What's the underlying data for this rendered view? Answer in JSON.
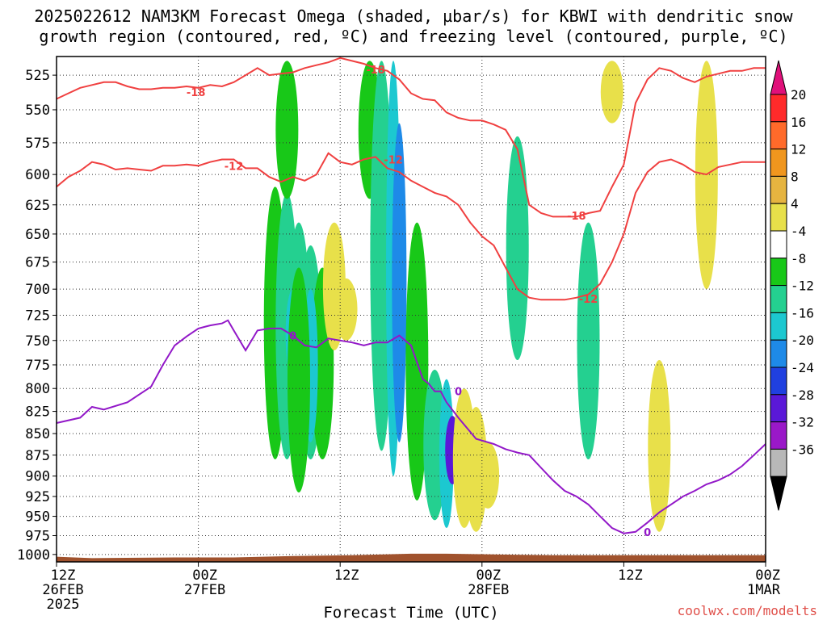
{
  "title_line1": "2025022612 NAM3KM Forecast Omega (shaded, µbar/s) for KBWI with dendritic snow",
  "title_line2": "growth region (contoured, red, ºC) and freezing level (contoured, purple, ºC)",
  "x_axis_title": "Forecast Time (UTC)",
  "credit": "coolwx.com/modelts",
  "chart_data": {
    "type": "heatmap",
    "title": "2025022612 NAM3KM Forecast Omega (shaded, µbar/s) for KBWI with dendritic snow growth region (contoured, red, ºC) and freezing level (contoured, purple, ºC)",
    "xlabel": "Forecast Time (UTC)",
    "ylabel": "",
    "x_ticks": [
      {
        "hour": 0,
        "line1": "12Z",
        "line2": "26FEB",
        "line3": "2025"
      },
      {
        "hour": 12,
        "line1": "00Z",
        "line2": "27FEB",
        "line3": ""
      },
      {
        "hour": 24,
        "line1": "12Z",
        "line2": "",
        "line3": ""
      },
      {
        "hour": 36,
        "line1": "00Z",
        "line2": "28FEB",
        "line3": ""
      },
      {
        "hour": 48,
        "line1": "12Z",
        "line2": "",
        "line3": ""
      },
      {
        "hour": 60,
        "line1": "00Z",
        "line2": "1MAR",
        "line3": ""
      }
    ],
    "xlim": [
      0,
      60
    ],
    "y_ticks": [
      525,
      550,
      575,
      600,
      625,
      650,
      675,
      700,
      725,
      750,
      775,
      800,
      825,
      850,
      875,
      900,
      925,
      950,
      975,
      1000
    ],
    "ylim": [
      512,
      1010
    ],
    "y_scale": "log-pressure",
    "grid": true,
    "colorbar": {
      "labels": [
        "20",
        "16",
        "12",
        "8",
        "4",
        "-4",
        "-8",
        "-12",
        "-16",
        "-20",
        "-24",
        "-28",
        "-32",
        "-36"
      ],
      "levels": [
        20,
        16,
        12,
        8,
        4,
        -4,
        -8,
        -12,
        -16,
        -20,
        -24,
        -28,
        -32,
        -36
      ],
      "colors": [
        "#ff2a2a",
        "#ff5a2a",
        "#f08a1a",
        "#e8b43a",
        "#e8e04a",
        "#ffffff",
        "#18c818",
        "#24d090",
        "#1cc8d0",
        "#1e8ae8",
        "#2040e0",
        "#5a18d8",
        "#9a18c8",
        "#b8b8b8"
      ],
      "top_triangle_color": "#e0107a",
      "bottom_triangle_color": "#000000"
    },
    "contours": [
      {
        "name": "freezing-level",
        "value": "0",
        "color": "#9218c8",
        "x": [
          0,
          2,
          3,
          4,
          6,
          8,
          9,
          10,
          11,
          12,
          13,
          14,
          14.5,
          15,
          16,
          17,
          18,
          19,
          20,
          21,
          22,
          23,
          24,
          25,
          26,
          27,
          28,
          29,
          30,
          31,
          31.5,
          32,
          32.5,
          33,
          34,
          35,
          35.5,
          36,
          37,
          38,
          39,
          40,
          41,
          42,
          43,
          44,
          45,
          46,
          47,
          48,
          49,
          50,
          51,
          52,
          53,
          54,
          55,
          56,
          57,
          58,
          59,
          60
        ],
        "p": [
          838,
          832,
          820,
          823,
          815,
          798,
          775,
          755,
          746,
          738,
          735,
          733,
          730,
          740,
          760,
          740,
          738,
          738,
          745,
          755,
          757,
          748,
          750,
          752,
          755,
          752,
          752,
          745,
          755,
          790,
          795,
          803,
          803,
          815,
          832,
          848,
          856,
          858,
          862,
          868,
          872,
          875,
          890,
          905,
          918,
          925,
          935,
          950,
          965,
          972,
          970,
          958,
          945,
          935,
          925,
          918,
          910,
          905,
          898,
          888,
          875,
          862
        ]
      },
      {
        "name": "dgz-minus12",
        "value": "-12",
        "color": "#f04040",
        "x": [
          0,
          1,
          2,
          3,
          4,
          5,
          6,
          7,
          8,
          9,
          10,
          11,
          12,
          13,
          14,
          15,
          16,
          17,
          18,
          19,
          20,
          21,
          22,
          23,
          24,
          25,
          26,
          27,
          28,
          29,
          30,
          31,
          32,
          33,
          34,
          35,
          36,
          37,
          38,
          39,
          40,
          41,
          42,
          43,
          44,
          45,
          46,
          47,
          48,
          49,
          50,
          51,
          52,
          53,
          54,
          55,
          56,
          57,
          58,
          59,
          60
        ],
        "p": [
          610,
          602,
          597,
          590,
          592,
          596,
          595,
          596,
          597,
          593,
          593,
          592,
          593,
          590,
          588,
          588,
          595,
          595,
          602,
          606,
          602,
          605,
          600,
          583,
          590,
          592,
          588,
          586,
          595,
          598,
          605,
          610,
          615,
          618,
          625,
          640,
          652,
          660,
          680,
          700,
          708,
          710,
          710,
          710,
          708,
          705,
          695,
          675,
          650,
          615,
          598,
          590,
          588,
          592,
          598,
          600,
          594,
          592,
          590,
          590,
          590
        ]
      },
      {
        "name": "dgz-minus18",
        "value": "-18",
        "color": "#f04040",
        "x": [
          0,
          1,
          2,
          3,
          4,
          5,
          6,
          7,
          8,
          9,
          10,
          11,
          12,
          13,
          14,
          15,
          16,
          17,
          18,
          19,
          20,
          21,
          22,
          23,
          24,
          25,
          26,
          27,
          28,
          29,
          30,
          31,
          32,
          33,
          34,
          35,
          36,
          37,
          38,
          39,
          40,
          41,
          42,
          43,
          44,
          45,
          46,
          47,
          48,
          49,
          50,
          51,
          52,
          53,
          54,
          55,
          56,
          57,
          58,
          59,
          60
        ],
        "p": [
          542,
          538,
          534,
          532,
          530,
          530,
          533,
          535,
          535,
          534,
          534,
          533,
          534,
          532,
          533,
          530,
          525,
          520,
          525,
          524,
          523,
          520,
          518,
          516,
          513,
          515,
          517,
          520,
          522,
          528,
          538,
          542,
          543,
          552,
          556,
          558,
          558,
          561,
          565,
          580,
          625,
          632,
          635,
          635,
          635,
          632,
          630,
          610,
          592,
          545,
          528,
          520,
          522,
          527,
          530,
          526,
          524,
          522,
          522,
          520,
          520
        ]
      }
    ],
    "contour_labels": [
      {
        "text": "-18",
        "hour": 11.8,
        "p": 537
      },
      {
        "text": "-18",
        "hour": 27,
        "p": 521
      },
      {
        "text": "-18",
        "hour": 44,
        "p": 634
      },
      {
        "text": "-12",
        "hour": 15,
        "p": 593
      },
      {
        "text": "-12",
        "hour": 28.5,
        "p": 588
      },
      {
        "text": "-12",
        "hour": 45,
        "p": 709
      },
      {
        "text": "0",
        "hour": 20,
        "p": 745
      },
      {
        "text": "0",
        "hour": 34,
        "p": 803
      },
      {
        "text": "0",
        "hour": 50,
        "p": 970
      }
    ],
    "omega_cells": [
      {
        "hour": 18.5,
        "p_top": 610,
        "p_bot": 880,
        "value": -6
      },
      {
        "hour": 19.5,
        "p_top": 615,
        "p_bot": 880,
        "value": -8
      },
      {
        "hour": 20.5,
        "p_top": 640,
        "p_bot": 860,
        "value": -10
      },
      {
        "hour": 21.5,
        "p_top": 660,
        "p_bot": 880,
        "value": -10
      },
      {
        "hour": 22.5,
        "p_top": 680,
        "p_bot": 880,
        "value": -6
      },
      {
        "hour": 20,
        "p_top": 700,
        "p_bot": 790,
        "value": -12
      },
      {
        "hour": 21.5,
        "p_top": 700,
        "p_bot": 860,
        "value": -14
      },
      {
        "hour": 19.5,
        "p_top": 515,
        "p_bot": 620,
        "value": -6
      },
      {
        "hour": 20.5,
        "p_top": 680,
        "p_bot": 920,
        "value": -6
      },
      {
        "hour": 23.5,
        "p_top": 640,
        "p_bot": 760,
        "value": 5
      },
      {
        "hour": 24.5,
        "p_top": 690,
        "p_bot": 750,
        "value": 7
      },
      {
        "hour": 26.5,
        "p_top": 515,
        "p_bot": 620,
        "value": -6
      },
      {
        "hour": 27.5,
        "p_top": 515,
        "p_bot": 870,
        "value": -8
      },
      {
        "hour": 28.5,
        "p_top": 515,
        "p_bot": 900,
        "value": -12
      },
      {
        "hour": 29,
        "p_top": 560,
        "p_bot": 860,
        "value": -16
      },
      {
        "hour": 30.5,
        "p_top": 640,
        "p_bot": 930,
        "value": -6
      },
      {
        "hour": 32,
        "p_top": 780,
        "p_bot": 955,
        "value": -8
      },
      {
        "hour": 33,
        "p_top": 790,
        "p_bot": 965,
        "value": -12
      },
      {
        "hour": 33.5,
        "p_top": 830,
        "p_bot": 910,
        "value": -24
      },
      {
        "hour": 34.5,
        "p_top": 800,
        "p_bot": 965,
        "value": 5
      },
      {
        "hour": 35.5,
        "p_top": 820,
        "p_bot": 970,
        "value": 5
      },
      {
        "hour": 36.5,
        "p_top": 860,
        "p_bot": 940,
        "value": 5
      },
      {
        "hour": 39,
        "p_top": 570,
        "p_bot": 770,
        "value": -8
      },
      {
        "hour": 45,
        "p_top": 640,
        "p_bot": 880,
        "value": -8
      },
      {
        "hour": 47,
        "p_top": 515,
        "p_bot": 560,
        "value": 5
      },
      {
        "hour": 51,
        "p_top": 770,
        "p_bot": 970,
        "value": 5
      },
      {
        "hour": 55,
        "p_top": 515,
        "p_bot": 700,
        "value": 5
      }
    ]
  }
}
